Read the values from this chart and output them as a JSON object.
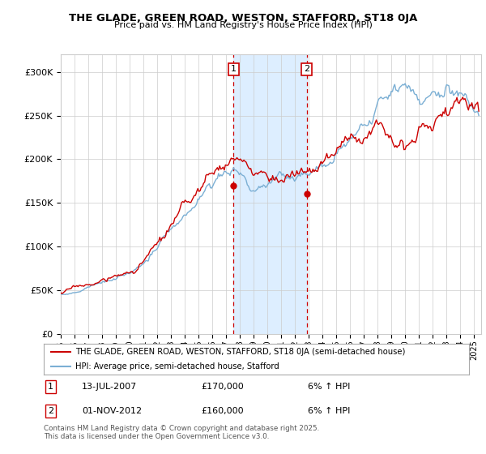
{
  "title": "THE GLADE, GREEN ROAD, WESTON, STAFFORD, ST18 0JA",
  "subtitle": "Price paid vs. HM Land Registry's House Price Index (HPI)",
  "xlim_start": 1995.0,
  "xlim_end": 2025.5,
  "ylim": [
    0,
    320000
  ],
  "yticks": [
    0,
    50000,
    100000,
    150000,
    200000,
    250000,
    300000
  ],
  "ytick_labels": [
    "£0",
    "£50K",
    "£100K",
    "£150K",
    "£200K",
    "£250K",
    "£300K"
  ],
  "sale1_date": 2007.54,
  "sale1_price": 170000,
  "sale1_label": "1",
  "sale2_date": 2012.84,
  "sale2_price": 160000,
  "sale2_label": "2",
  "shade_x1": 2007.54,
  "shade_x2": 2012.84,
  "red_line_color": "#cc0000",
  "blue_line_color": "#7bafd4",
  "shade_color": "#ddeeff",
  "vline_color": "#cc0000",
  "background_color": "#ffffff",
  "grid_color": "#cccccc",
  "legend_line1": "THE GLADE, GREEN ROAD, WESTON, STAFFORD, ST18 0JA (semi-detached house)",
  "legend_line2": "HPI: Average price, semi-detached house, Stafford",
  "note1_num": "1",
  "note1_date": "13-JUL-2007",
  "note1_price": "£170,000",
  "note1_hpi": "6% ↑ HPI",
  "note2_num": "2",
  "note2_date": "01-NOV-2012",
  "note2_price": "£160,000",
  "note2_hpi": "6% ↑ HPI",
  "footer": "Contains HM Land Registry data © Crown copyright and database right 2025.\nThis data is licensed under the Open Government Licence v3.0."
}
